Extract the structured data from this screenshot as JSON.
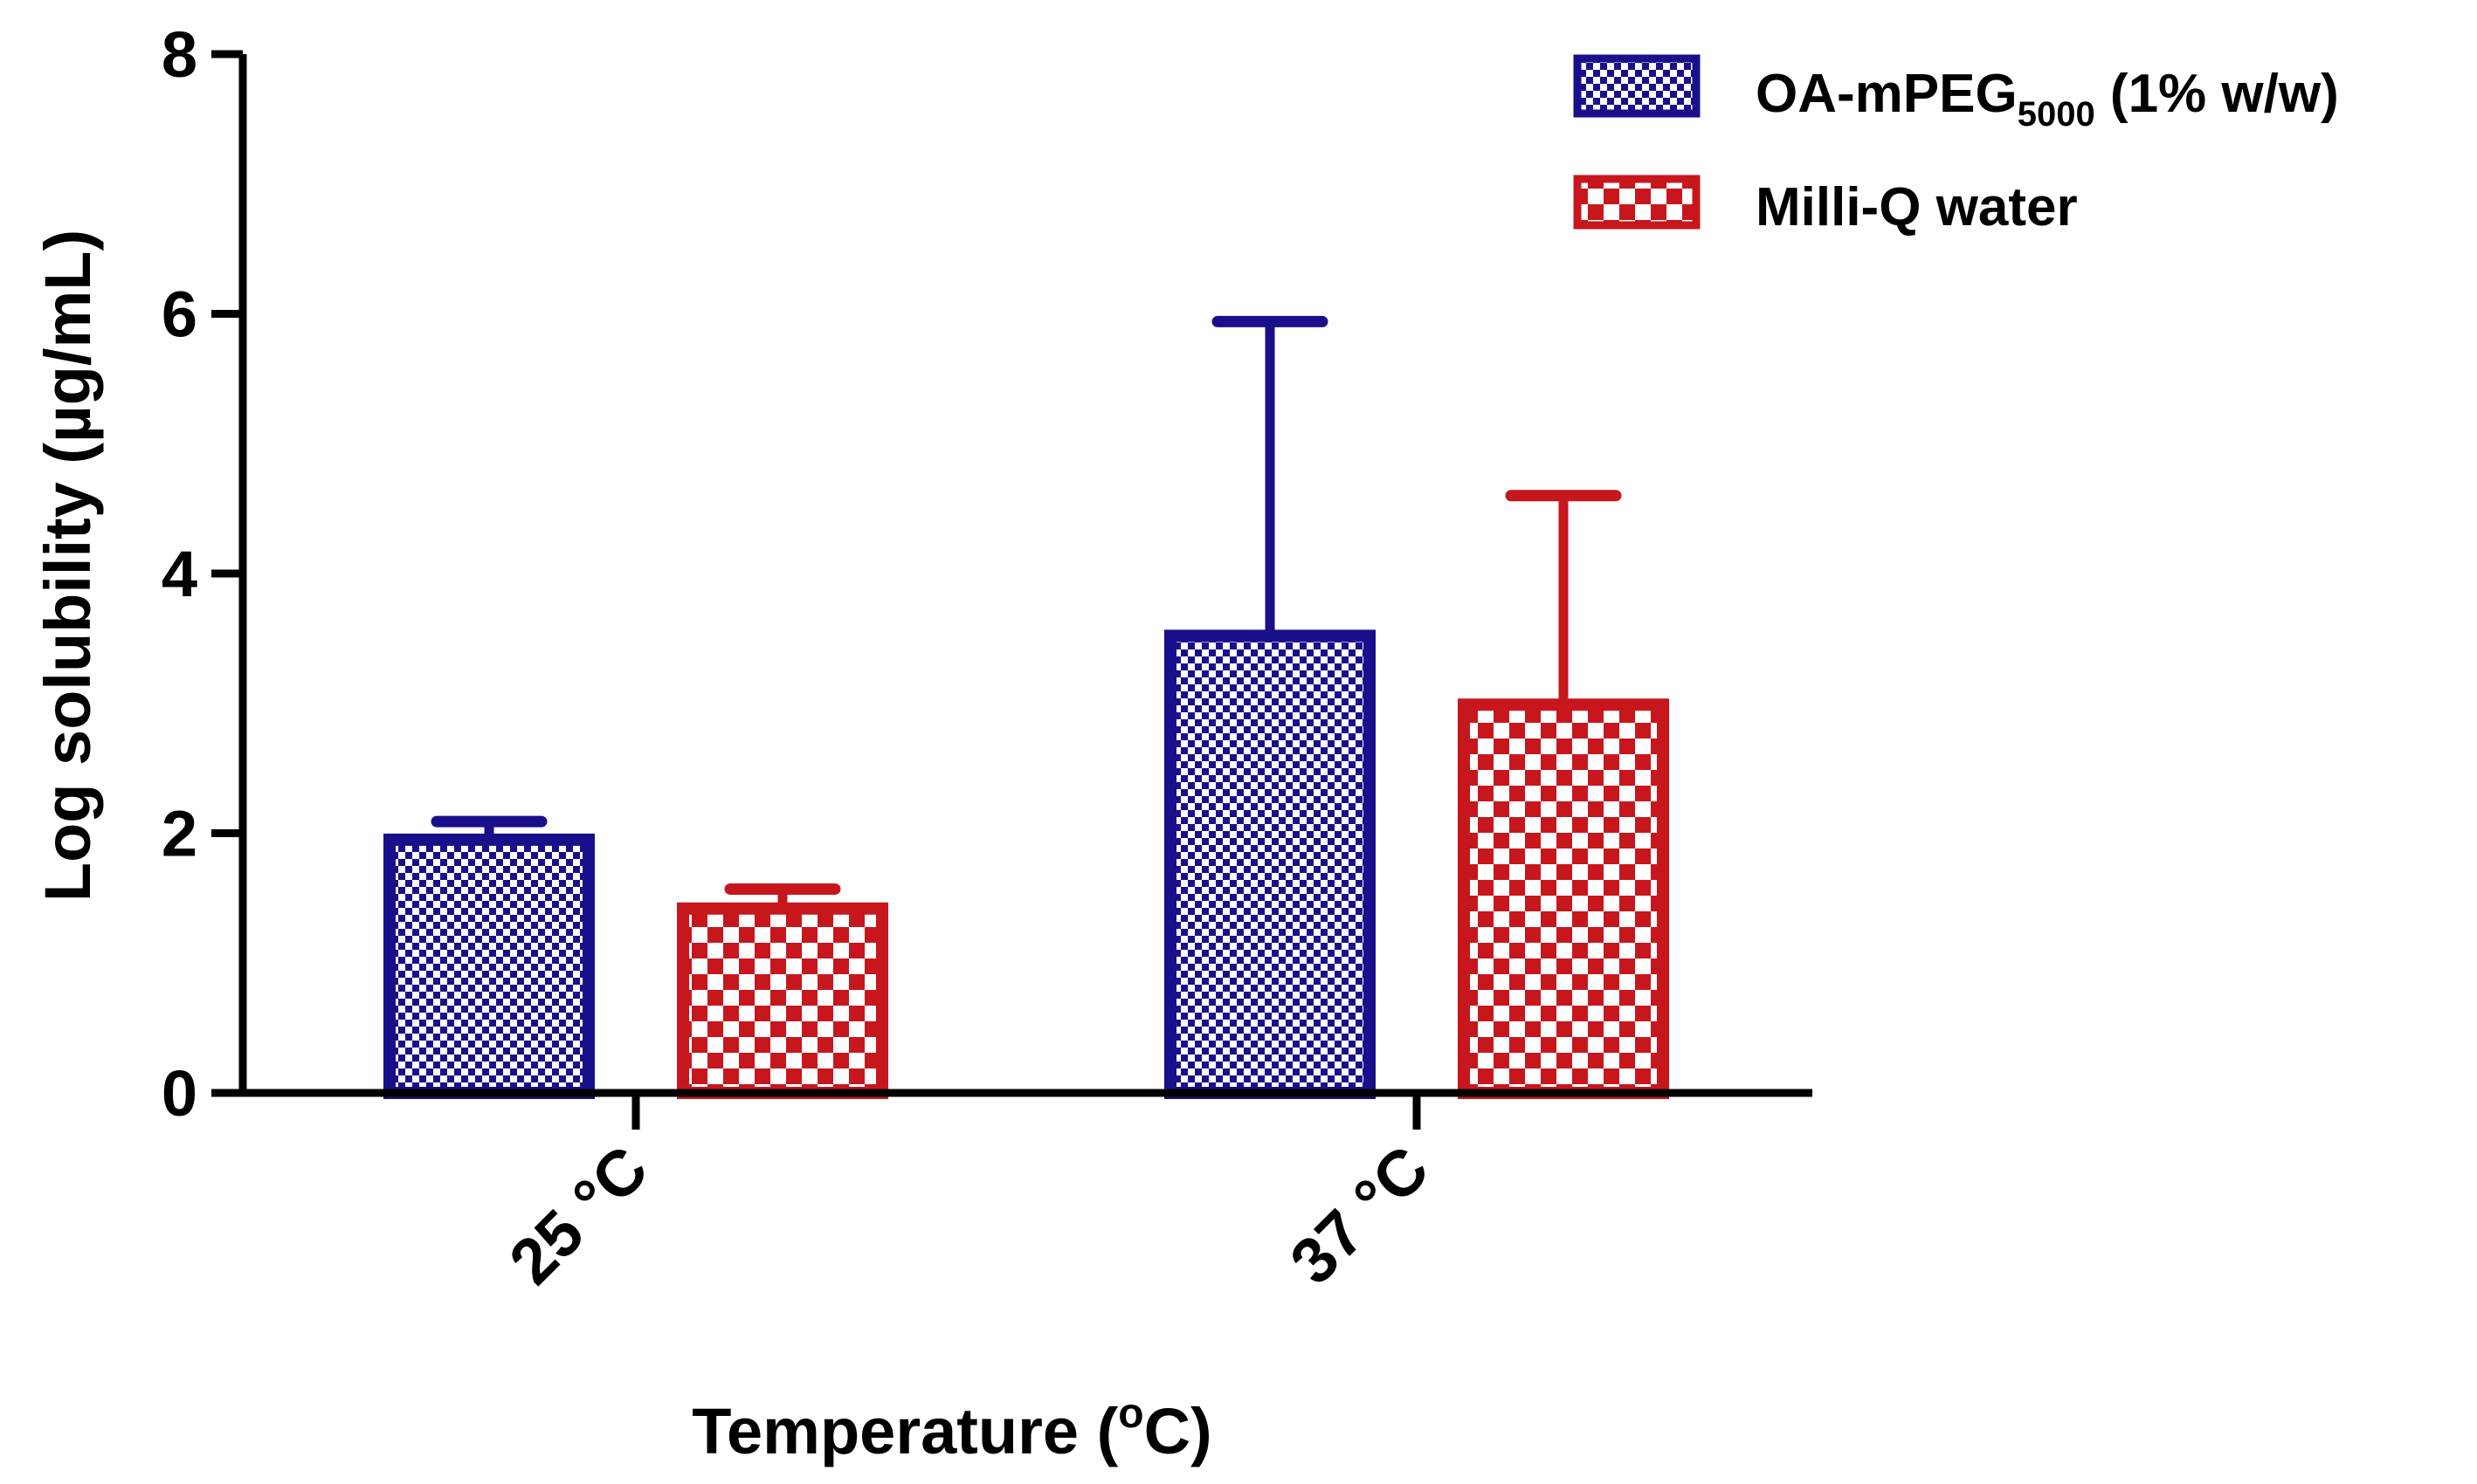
{
  "chart_data": {
    "type": "bar",
    "title": "",
    "xlabel": "Temperature (°C)",
    "xlabel_main": "Temperature (",
    "xlabel_super": "o",
    "xlabel_tail": "C)",
    "ylabel": "Log solubility (µg/mL)",
    "ylim": [
      0,
      8
    ],
    "yticks": [
      0,
      2,
      4,
      6,
      8
    ],
    "ytick_labels": [
      "0",
      "2",
      "4",
      "6",
      "8"
    ],
    "categories": [
      "25 °C",
      "37 °C"
    ],
    "category_labels": [
      "25 °C",
      "37 °C"
    ],
    "series": [
      {
        "name": "OA-mPEG5000 (1% w/w)",
        "legend_main": "OA-mPEG",
        "legend_sub": "5000",
        "legend_tail": " (1% w/w)",
        "color": "#1a0f8a",
        "pattern": "fine-checker",
        "values": [
          1.95,
          3.52
        ],
        "errors": [
          0.14,
          2.42
        ]
      },
      {
        "name": "Milli-Q water",
        "legend_main": "Milli-Q water",
        "legend_sub": "",
        "legend_tail": "",
        "color": "#c8161d",
        "pattern": "coarse-checker",
        "values": [
          1.42,
          2.99
        ],
        "errors": [
          0.15,
          1.61
        ]
      }
    ],
    "legend_position": "top-right",
    "grid": false
  }
}
